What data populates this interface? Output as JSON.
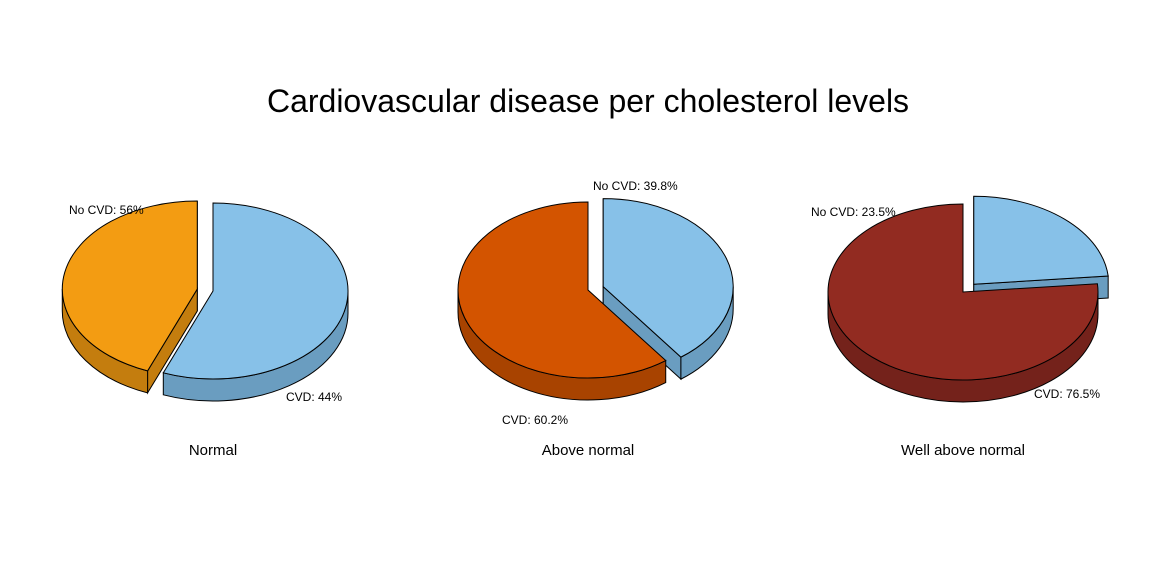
{
  "title": "Cardiovascular disease per cholesterol levels",
  "chart_data": [
    {
      "type": "pie",
      "style": "3d-exploded",
      "title": "Normal",
      "slices": [
        {
          "label": "No CVD: 56%",
          "value": 56,
          "color": "#87C1E8",
          "side_color": "#6A9DC0"
        },
        {
          "label": "CVD: 44%",
          "value": 44,
          "color": "#F39C12",
          "side_color": "#C47D0E"
        }
      ]
    },
    {
      "type": "pie",
      "style": "3d-exploded",
      "title": "Above normal",
      "slices": [
        {
          "label": "No CVD: 39.8%",
          "value": 39.8,
          "color": "#87C1E8",
          "side_color": "#6A9DC0"
        },
        {
          "label": "CVD: 60.2%",
          "value": 60.2,
          "color": "#D35400",
          "side_color": "#A84300"
        }
      ]
    },
    {
      "type": "pie",
      "style": "3d-exploded",
      "title": "Well above normal",
      "slices": [
        {
          "label": "No CVD: 23.5%",
          "value": 23.5,
          "color": "#87C1E8",
          "side_color": "#6A9DC0"
        },
        {
          "label": "CVD: 76.5%",
          "value": 76.5,
          "color": "#922B21",
          "side_color": "#74221B"
        }
      ]
    }
  ]
}
